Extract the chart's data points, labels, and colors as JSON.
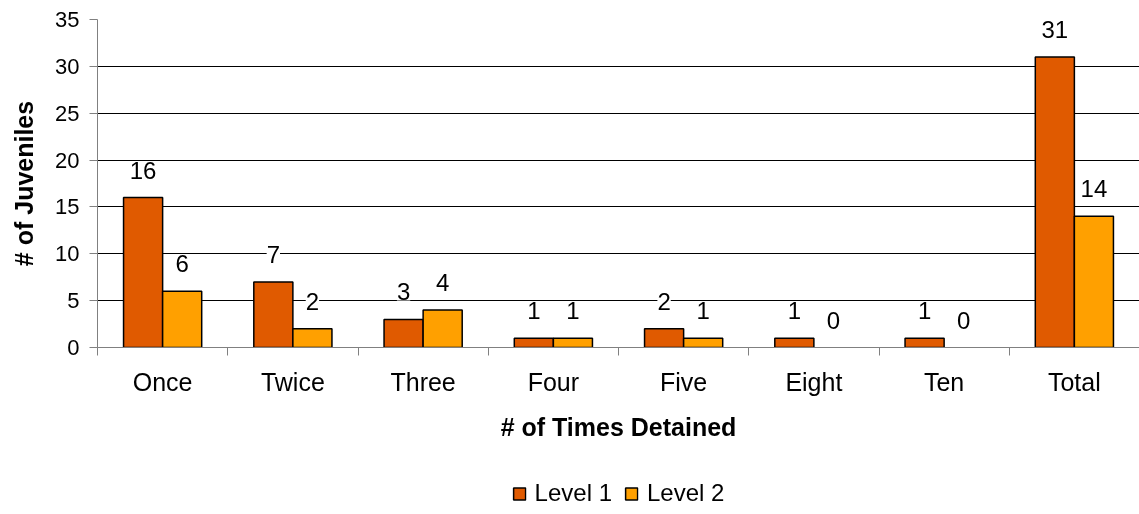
{
  "chart_data": {
    "type": "bar",
    "xlabel": "# of Times Detained",
    "ylabel": "# of Juveniles",
    "categories": [
      "Once",
      "Twice",
      "Three",
      "Four",
      "Five",
      "Eight",
      "Ten",
      "Total"
    ],
    "series": [
      {
        "name": "Level 1",
        "color": "#e05a00",
        "values": [
          16,
          7,
          3,
          1,
          2,
          1,
          1,
          31
        ]
      },
      {
        "name": "Level 2",
        "color": "#ffa000",
        "values": [
          6,
          2,
          4,
          1,
          1,
          0,
          0,
          14
        ]
      }
    ],
    "ylim": [
      0,
      35
    ],
    "yticks": [
      0,
      5,
      10,
      15,
      20,
      25,
      30,
      35
    ],
    "grid": "y",
    "legend": "bottom",
    "data_labels": true
  }
}
